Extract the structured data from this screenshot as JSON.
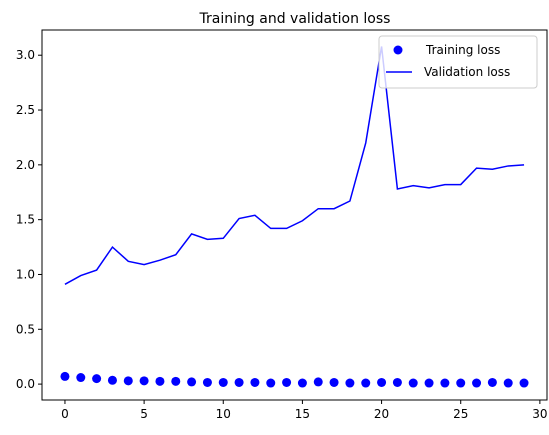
{
  "chart_data": {
    "type": "line",
    "title": "Training and validation loss",
    "xlabel": "",
    "ylabel": "",
    "xlim": [
      -1.45,
      30.45
    ],
    "ylim": [
      -0.145,
      3.23
    ],
    "xticks": [
      0,
      5,
      10,
      15,
      20,
      25,
      30
    ],
    "xtick_labels": [
      "0",
      "5",
      "10",
      "15",
      "20",
      "25",
      "30"
    ],
    "yticks": [
      0.0,
      0.5,
      1.0,
      1.5,
      2.0,
      2.5,
      3.0
    ],
    "ytick_labels": [
      "0.0",
      "0.5",
      "1.0",
      "1.5",
      "2.0",
      "2.5",
      "3.0"
    ],
    "grid": false,
    "legend_position": "top-right",
    "series": [
      {
        "name": "Training loss",
        "style": "scatter",
        "color": "#0000ff",
        "x": [
          0,
          1,
          2,
          3,
          4,
          5,
          6,
          7,
          8,
          9,
          10,
          11,
          12,
          13,
          14,
          15,
          16,
          17,
          18,
          19,
          20,
          21,
          22,
          23,
          24,
          25,
          26,
          27,
          28,
          29
        ],
        "values": [
          0.07,
          0.06,
          0.05,
          0.035,
          0.03,
          0.03,
          0.025,
          0.025,
          0.02,
          0.015,
          0.015,
          0.015,
          0.015,
          0.01,
          0.015,
          0.01,
          0.02,
          0.015,
          0.01,
          0.01,
          0.015,
          0.015,
          0.01,
          0.01,
          0.01,
          0.01,
          0.01,
          0.015,
          0.01,
          0.01
        ]
      },
      {
        "name": "Validation loss",
        "style": "line",
        "color": "#0000ff",
        "x": [
          0,
          1,
          2,
          3,
          4,
          5,
          6,
          7,
          8,
          9,
          10,
          11,
          12,
          13,
          14,
          15,
          16,
          17,
          18,
          19,
          20,
          21,
          22,
          23,
          24,
          25,
          26,
          27,
          28,
          29
        ],
        "values": [
          0.91,
          0.99,
          1.04,
          1.25,
          1.12,
          1.09,
          1.13,
          1.18,
          1.37,
          1.32,
          1.33,
          1.51,
          1.54,
          1.42,
          1.42,
          1.49,
          1.6,
          1.6,
          1.67,
          2.2,
          3.08,
          1.78,
          1.81,
          1.79,
          1.82,
          1.82,
          1.97,
          1.96,
          1.99,
          2.0
        ]
      }
    ]
  }
}
